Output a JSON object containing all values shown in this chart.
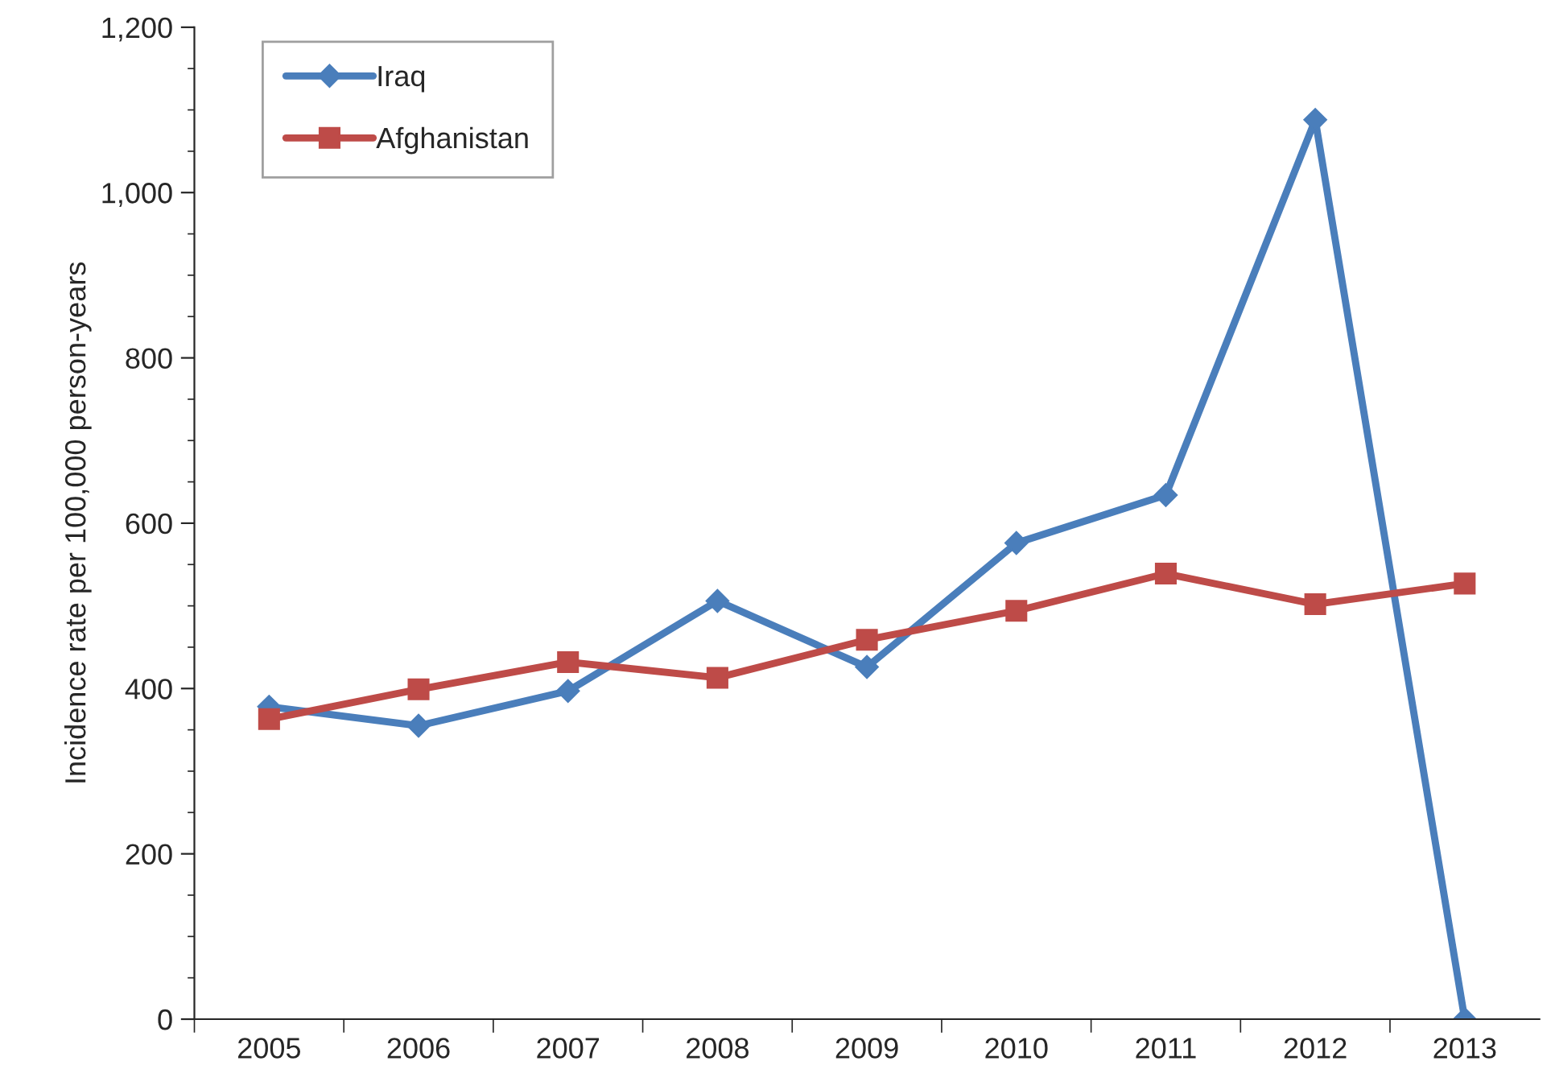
{
  "chart_data": {
    "type": "line",
    "ylabel": "Incidence rate per 100,000 person-years",
    "categories": [
      "2005",
      "2006",
      "2007",
      "2008",
      "2009",
      "2010",
      "2011",
      "2012",
      "2013"
    ],
    "series": [
      {
        "name": "Iraq",
        "color": "#4a7ebb",
        "marker": "diamond",
        "values": [
          378,
          355,
          397,
          506,
          426,
          576,
          634,
          1088,
          0
        ]
      },
      {
        "name": "Afghanistan",
        "color": "#be4b48",
        "marker": "square",
        "values": [
          363,
          399,
          432,
          413,
          459,
          494,
          539,
          502,
          527
        ]
      }
    ],
    "ylim": [
      0,
      1200
    ],
    "yticks": [
      {
        "value": 0,
        "label": "0"
      },
      {
        "value": 200,
        "label": "200"
      },
      {
        "value": 400,
        "label": "400"
      },
      {
        "value": 600,
        "label": "600"
      },
      {
        "value": 800,
        "label": "800"
      },
      {
        "value": 1000,
        "label": "1,000"
      },
      {
        "value": 1200,
        "label": "1,200"
      }
    ],
    "grid": false,
    "legend": "top left",
    "line_style": "solid"
  }
}
